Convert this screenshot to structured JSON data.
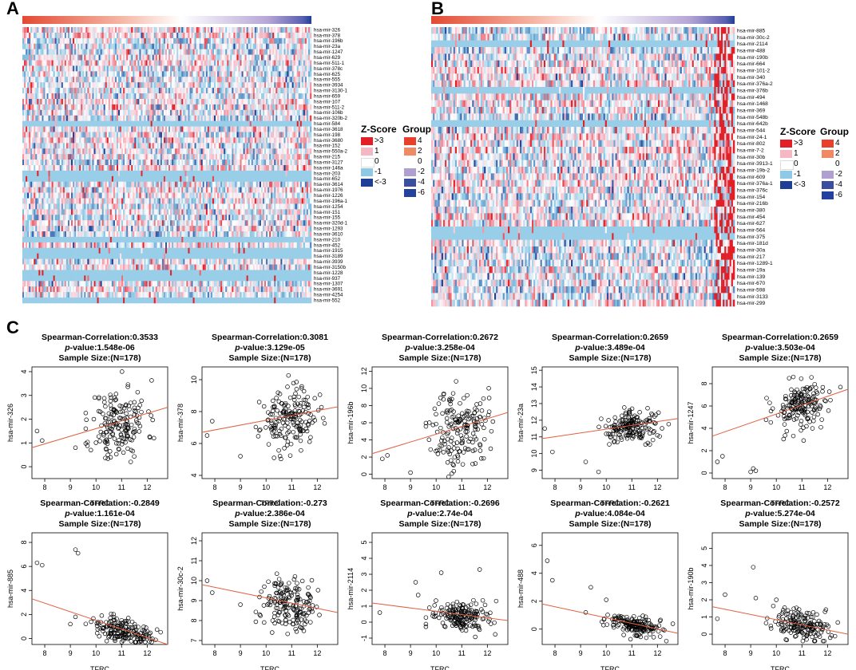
{
  "panels": {
    "a_label": "A",
    "b_label": "B",
    "c_label": "C"
  },
  "legend": {
    "zscore_title": "Z-Score",
    "zscore_labels": [
      ">3",
      "1",
      "0",
      "-1",
      "<-3"
    ],
    "zscore_colors": [
      "#e21f26",
      "#f5b7c4",
      "#ffffff",
      "#8ec9e5",
      "#1f3f97"
    ],
    "group_title": "Group",
    "group_labels": [
      "4",
      "2",
      "0",
      "-2",
      "-4",
      "-6"
    ],
    "group_colors": [
      "#e8402a",
      "#f08a64",
      "#ffffff",
      "#b0a0cf",
      "#3b4f9e",
      "#2441a0"
    ]
  },
  "chart_data": [
    {
      "type": "heatmap",
      "panel": "A",
      "rows": [
        "hsa-mir-326",
        "hsa-mir-378",
        "hsa-mir-196b",
        "hsa-mir-23a",
        "hsa-mir-1247",
        "hsa-mir-629",
        "hsa-mir-511-1",
        "hsa-mir-378c",
        "hsa-mir-625",
        "hsa-mir-555",
        "hsa-mir-3934",
        "hsa-mir-3130-1",
        "hsa-mir-659",
        "hsa-mir-107",
        "hsa-mir-511-2",
        "hsa-mir-106b",
        "hsa-mir-320b-2",
        "hsa-mir-584",
        "hsa-mir-3618",
        "hsa-mir-198",
        "hsa-mir-3680",
        "hsa-mir-152",
        "hsa-mir-550a-2",
        "hsa-mir-215",
        "hsa-mir-3127",
        "hsa-mir-146a",
        "hsa-mir-203",
        "hsa-mir-652",
        "hsa-mir-3614",
        "hsa-mir-1976",
        "hsa-mir-1226",
        "hsa-mir-196a-1",
        "hsa-mir-1254",
        "hsa-mir-151",
        "hsa-mir-155",
        "hsa-mir-320d-1",
        "hsa-mir-1293",
        "hsa-mir-3610",
        "hsa-mir-210",
        "hsa-mir-452",
        "hsa-mir-1915",
        "hsa-mir-3189",
        "hsa-mir-3939",
        "hsa-mir-3150b",
        "hsa-mir-1228",
        "hsa-mir-937",
        "hsa-mir-1307",
        "hsa-mir-3691",
        "hsa-mir-4254",
        "hsa-mir-552"
      ],
      "group_bar": "gradient from 4 (red) to -6 (blue)"
    },
    {
      "type": "heatmap",
      "panel": "B",
      "rows": [
        "hsa-mir-885",
        "hsa-mir-30c-2",
        "hsa-mir-2114",
        "hsa-mir-488",
        "hsa-mir-190b",
        "hsa-mir-664",
        "hsa-mir-101-2",
        "hsa-mir-340",
        "hsa-mir-376a-2",
        "hsa-mir-376b",
        "hsa-mir-494",
        "hsa-mir-1468",
        "hsa-mir-369",
        "hsa-mir-548b",
        "hsa-mir-642b",
        "hsa-mir-544",
        "hsa-mir-24-1",
        "hsa-mir-802",
        "hsa-mir-7-2",
        "hsa-mir-30b",
        "hsa-mir-3913-1",
        "hsa-mir-19b-2",
        "hsa-mir-609",
        "hsa-mir-376a-1",
        "hsa-mir-376c",
        "hsa-mir-154",
        "hsa-mir-216b",
        "hsa-mir-380",
        "hsa-mir-454",
        "hsa-mir-627",
        "hsa-mir-564",
        "hsa-mir-375",
        "hsa-mir-181d",
        "hsa-mir-30a",
        "hsa-mir-217",
        "hsa-mir-1289-1",
        "hsa-mir-19a",
        "hsa-mir-139",
        "hsa-mir-670",
        "hsa-mir-598",
        "hsa-mir-3133",
        "hsa-mir-299"
      ],
      "group_bar": "gradient from 4 (red) to -6 (blue)"
    },
    {
      "type": "scatter",
      "panel": "C",
      "title": "Spearman-Correlation:0.3533",
      "pvalue_label": "p",
      "pvalue_text": "-value:1.548e-06",
      "sample": "Sample Size:(N=178)",
      "xlabel": "TFRC",
      "ylabel": "hsa-mir-326",
      "xlim": [
        7.5,
        12.8
      ],
      "ylim": [
        -0.5,
        4.2
      ],
      "xticks": [
        "8",
        "9",
        "10",
        "11",
        "12"
      ],
      "yticks": [
        "0",
        "1",
        "2",
        "3",
        "4"
      ],
      "fit": [
        [
          7.5,
          0.8
        ],
        [
          12.8,
          2.5
        ]
      ],
      "seed": 11,
      "center": [
        10.9,
        1.8
      ],
      "spread": [
        0.55,
        0.8
      ],
      "outliers": [
        [
          7.7,
          1.5
        ],
        [
          7.9,
          1.1
        ],
        [
          9.2,
          0.8
        ]
      ]
    },
    {
      "type": "scatter",
      "panel": "C",
      "title": "Spearman-Correlation:0.3081",
      "pvalue_label": "p",
      "pvalue_text": "-value:3.129e-05",
      "sample": "Sample Size:(N=178)",
      "xlabel": "TFRC",
      "ylabel": "hsa-mir-378",
      "xlim": [
        7.5,
        12.8
      ],
      "ylim": [
        3.8,
        10.8
      ],
      "xticks": [
        "8",
        "9",
        "10",
        "11",
        "12"
      ],
      "yticks": [
        "4",
        "6",
        "8",
        "10"
      ],
      "fit": [
        [
          7.5,
          6.7
        ],
        [
          12.8,
          8.3
        ]
      ],
      "seed": 23,
      "center": [
        10.9,
        7.5
      ],
      "spread": [
        0.55,
        0.9
      ],
      "outliers": [
        [
          7.7,
          6.5
        ],
        [
          7.9,
          7.4
        ],
        [
          9.0,
          5.2
        ]
      ]
    },
    {
      "type": "scatter",
      "panel": "C",
      "title": "Spearman-Correlation:0.2672",
      "pvalue_label": "p",
      "pvalue_text": "-value:3.258e-04",
      "sample": "Sample Size:(N=178)",
      "xlabel": "TFRC",
      "ylabel": "hsa-mir-196b",
      "xlim": [
        7.5,
        12.8
      ],
      "ylim": [
        -0.5,
        12.5
      ],
      "xticks": [
        "8",
        "9",
        "10",
        "11",
        "12"
      ],
      "yticks": [
        "0",
        "2",
        "4",
        "6",
        "8",
        "10",
        "12"
      ],
      "fit": [
        [
          7.5,
          2.4
        ],
        [
          12.8,
          7.2
        ]
      ],
      "seed": 37,
      "center": [
        10.9,
        5.3
      ],
      "spread": [
        0.55,
        2.3
      ],
      "outliers": [
        [
          7.9,
          1.8
        ],
        [
          8.1,
          2.2
        ],
        [
          9.0,
          0.2
        ]
      ]
    },
    {
      "type": "scatter",
      "panel": "C",
      "title": "Spearman-Correlation:0.2659",
      "pvalue_label": "p",
      "pvalue_text": "-value:3.489e-04",
      "sample": "Sample Size:(N=178)",
      "xlabel": "TFRC",
      "ylabel": "hsa-mir-23a",
      "xlim": [
        7.5,
        12.8
      ],
      "ylim": [
        8.5,
        15.2
      ],
      "xticks": [
        "8",
        "9",
        "10",
        "11",
        "12"
      ],
      "yticks": [
        "9",
        "10",
        "11",
        "12",
        "13",
        "14",
        "15"
      ],
      "fit": [
        [
          7.5,
          10.9
        ],
        [
          12.8,
          12.1
        ]
      ],
      "seed": 41,
      "center": [
        11.0,
        11.6
      ],
      "spread": [
        0.55,
        0.45
      ],
      "outliers": [
        [
          7.6,
          11.5
        ],
        [
          7.9,
          10.1
        ],
        [
          9.2,
          9.5
        ],
        [
          9.7,
          8.9
        ]
      ]
    },
    {
      "type": "scatter",
      "panel": "C",
      "title": "Spearman-Correlation:0.2659",
      "pvalue_label": "p",
      "pvalue_text": "-value:3.503e-04",
      "sample": "Sample Size:(N=178)",
      "xlabel": "TFRC",
      "ylabel": "hsa-mir-1247",
      "xlim": [
        7.5,
        12.8
      ],
      "ylim": [
        -0.5,
        9.5
      ],
      "xticks": [
        "8",
        "9",
        "10",
        "11",
        "12"
      ],
      "yticks": [
        "0",
        "2",
        "4",
        "6",
        "8"
      ],
      "fit": [
        [
          7.5,
          3.3
        ],
        [
          12.8,
          7.5
        ]
      ],
      "seed": 53,
      "center": [
        11.0,
        6.0
      ],
      "spread": [
        0.55,
        1.1
      ],
      "outliers": [
        [
          7.7,
          1.0
        ],
        [
          7.9,
          1.5
        ],
        [
          9.0,
          0.1
        ],
        [
          9.1,
          0.4
        ],
        [
          9.2,
          0.2
        ]
      ]
    },
    {
      "type": "scatter",
      "panel": "C",
      "title": "Spearman-Correlation:-0.2849",
      "pvalue_label": "p",
      "pvalue_text": "-value:1.161e-04",
      "sample": "Sample Size:(N=178)",
      "xlabel": "TFRC",
      "ylabel": "hsa-mir-885",
      "xlim": [
        7.5,
        12.8
      ],
      "ylim": [
        -0.5,
        8.8
      ],
      "xticks": [
        "8",
        "9",
        "10",
        "11",
        "12"
      ],
      "yticks": [
        "0",
        "2",
        "4",
        "6",
        "8"
      ],
      "fit": [
        [
          7.5,
          3.3
        ],
        [
          12.8,
          -0.5
        ]
      ],
      "seed": 67,
      "center": [
        11.0,
        0.55
      ],
      "spread": [
        0.55,
        0.5
      ],
      "outliers": [
        [
          7.7,
          6.3
        ],
        [
          7.9,
          6.1
        ],
        [
          9.2,
          7.4
        ],
        [
          9.3,
          7.1
        ],
        [
          9.2,
          1.8
        ],
        [
          9.0,
          1.2
        ]
      ]
    },
    {
      "type": "scatter",
      "panel": "C",
      "title": "Spearman-Correlation:-0.273",
      "pvalue_label": "p",
      "pvalue_text": "-value:2.386e-04",
      "sample": "Sample Size:(N=178)",
      "xlabel": "TFRC",
      "ylabel": "hsa-mir-30c-2",
      "xlim": [
        7.5,
        12.8
      ],
      "ylim": [
        6.8,
        12.4
      ],
      "xticks": [
        "8",
        "9",
        "10",
        "11",
        "12"
      ],
      "yticks": [
        "7",
        "8",
        "9",
        "10",
        "11",
        "12"
      ],
      "fit": [
        [
          7.5,
          9.8
        ],
        [
          12.8,
          8.4
        ]
      ],
      "seed": 79,
      "center": [
        10.9,
        8.9
      ],
      "spread": [
        0.55,
        0.65
      ],
      "outliers": [
        [
          7.7,
          10.0
        ],
        [
          7.9,
          9.4
        ],
        [
          9.0,
          8.8
        ]
      ]
    },
    {
      "type": "scatter",
      "panel": "C",
      "title": "Spearman-Correlation:-0.2696",
      "pvalue_label": "p",
      "pvalue_text": "-value:2.74e-04",
      "sample": "Sample Size:(N=178)",
      "xlabel": "TFRC",
      "ylabel": "hsa-mir-2114",
      "xlim": [
        7.5,
        12.8
      ],
      "ylim": [
        -1.4,
        5.6
      ],
      "xticks": [
        "8",
        "9",
        "10",
        "11",
        "12"
      ],
      "yticks": [
        "-1",
        "0",
        "1",
        "2",
        "3",
        "4",
        "5"
      ],
      "fit": [
        [
          7.5,
          1.2
        ],
        [
          12.8,
          0.1
        ]
      ],
      "seed": 83,
      "center": [
        11.0,
        0.35
      ],
      "spread": [
        0.55,
        0.45
      ],
      "outliers": [
        [
          7.8,
          0.6
        ],
        [
          9.2,
          2.5
        ],
        [
          9.3,
          1.7
        ],
        [
          10.2,
          3.1
        ],
        [
          11.7,
          3.3
        ]
      ]
    },
    {
      "type": "scatter",
      "panel": "C",
      "title": "Spearman-Correlation:-0.2621",
      "pvalue_label": "p",
      "pvalue_text": "-value:4.084e-04",
      "sample": "Sample Size:(N=178)",
      "xlabel": "TFRC",
      "ylabel": "hsa-mir-488",
      "xlim": [
        7.5,
        12.8
      ],
      "ylim": [
        -1.1,
        6.9
      ],
      "xticks": [
        "8",
        "9",
        "10",
        "11",
        "12"
      ],
      "yticks": [
        "0",
        "2",
        "4",
        "6"
      ],
      "fit": [
        [
          7.5,
          1.8
        ],
        [
          12.8,
          -0.3
        ]
      ],
      "seed": 97,
      "center": [
        11.0,
        0.3
      ],
      "spread": [
        0.55,
        0.35
      ],
      "outliers": [
        [
          7.7,
          4.9
        ],
        [
          7.9,
          3.5
        ],
        [
          9.2,
          1.2
        ],
        [
          9.4,
          3.0
        ],
        [
          10.0,
          2.1
        ]
      ]
    },
    {
      "type": "scatter",
      "panel": "C",
      "title": "Spearman-Correlation:-0.2572",
      "pvalue_label": "p",
      "pvalue_text": "-value:5.274e-04",
      "sample": "Sample Size:(N=178)",
      "xlabel": "TFRC",
      "ylabel": "hsa-mir-190b",
      "xlim": [
        7.5,
        12.8
      ],
      "ylim": [
        -0.6,
        5.9
      ],
      "xticks": [
        "8",
        "9",
        "10",
        "11",
        "12"
      ],
      "yticks": [
        "0",
        "1",
        "2",
        "3",
        "4",
        "5"
      ],
      "fit": [
        [
          7.5,
          1.6
        ],
        [
          12.8,
          0.0
        ]
      ],
      "seed": 101,
      "center": [
        11.0,
        0.55
      ],
      "spread": [
        0.55,
        0.45
      ],
      "outliers": [
        [
          7.7,
          0.9
        ],
        [
          8.0,
          2.3
        ],
        [
          9.1,
          3.9
        ],
        [
          9.2,
          2.1
        ],
        [
          10.0,
          2.0
        ]
      ]
    }
  ]
}
